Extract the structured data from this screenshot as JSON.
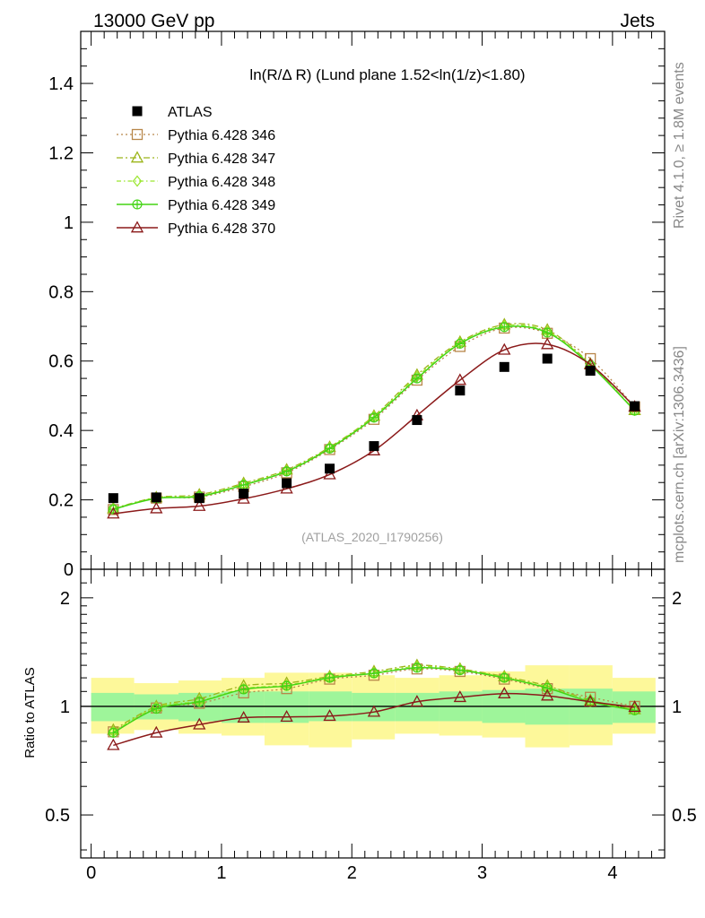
{
  "header": {
    "left": "13000 GeV pp",
    "right": "Jets",
    "title": "ln(R/Δ R) (Lund plane 1.52<ln(1/z)<1.80)",
    "watermark": "(ATLAS_2020_I1790256)",
    "side_top": "Rivet 4.1.0, ≥ 1.8M events",
    "side_bottom": "mcplots.cern.ch [arXiv:1306.3436]"
  },
  "chart_data": [
    {
      "type": "scatter",
      "panel": "main",
      "title": "ln(R/Δ R) (Lund plane 1.52<ln(1/z)<1.80)",
      "xlabel": "",
      "ylabel": "",
      "xlim": [
        -0.08,
        4.4
      ],
      "ylim": [
        0,
        1.55
      ],
      "xticks": [
        0,
        1,
        2,
        3,
        4
      ],
      "yticks": [
        0,
        0.2,
        0.4,
        0.6,
        0.8,
        1,
        1.2,
        1.4
      ],
      "ytick_labels": [
        "0",
        "0.2",
        "0.4",
        "0.6",
        "0.8",
        "1",
        "1.2",
        "1.4"
      ],
      "x": [
        0.17,
        0.5,
        0.83,
        1.17,
        1.5,
        1.83,
        2.17,
        2.5,
        2.83,
        3.17,
        3.5,
        3.83,
        4.17
      ],
      "series": [
        {
          "name": "ATLAS",
          "color": "#000000",
          "style": "points",
          "values": [
            0.205,
            0.207,
            0.205,
            0.218,
            0.248,
            0.29,
            0.355,
            0.43,
            0.515,
            0.583,
            0.607,
            0.572,
            0.47
          ]
        },
        {
          "name": "Pythia 6.428 346",
          "color": "#b8874a",
          "style": "dotted",
          "marker": "square",
          "values": [
            0.172,
            0.205,
            0.208,
            0.238,
            0.278,
            0.345,
            0.432,
            0.545,
            0.642,
            0.695,
            0.68,
            0.607,
            0.468
          ]
        },
        {
          "name": "Pythia 6.428 347",
          "color": "#9cb51a",
          "style": "dashdot",
          "marker": "triangle",
          "values": [
            0.175,
            0.207,
            0.215,
            0.248,
            0.287,
            0.352,
            0.442,
            0.56,
            0.655,
            0.705,
            0.69,
            0.592,
            0.458
          ]
        },
        {
          "name": "Pythia 6.428 348",
          "color": "#9ae62e",
          "style": "dashdot2",
          "marker": "diamond",
          "values": [
            0.174,
            0.206,
            0.212,
            0.245,
            0.284,
            0.35,
            0.44,
            0.555,
            0.652,
            0.702,
            0.685,
            0.59,
            0.458
          ]
        },
        {
          "name": "Pythia 6.428 349",
          "color": "#44d414",
          "style": "solid",
          "marker": "crosscircle",
          "values": [
            0.173,
            0.204,
            0.21,
            0.243,
            0.282,
            0.348,
            0.437,
            0.55,
            0.65,
            0.698,
            0.682,
            0.588,
            0.457
          ]
        },
        {
          "name": "Pythia 6.428 370",
          "color": "#8b1a1a",
          "style": "solid",
          "marker": "triangle",
          "values": [
            0.16,
            0.175,
            0.182,
            0.203,
            0.232,
            0.273,
            0.342,
            0.443,
            0.545,
            0.632,
            0.648,
            0.59,
            0.468
          ]
        }
      ]
    },
    {
      "type": "line",
      "panel": "ratio",
      "ylabel": "Ratio to ATLAS",
      "yscale": "log",
      "xlim": [
        -0.08,
        4.4
      ],
      "ylim": [
        0.38,
        2.4
      ],
      "yticks": [
        0.5,
        1,
        2
      ],
      "ytick_labels": [
        "0.5",
        "1",
        "2"
      ],
      "x": [
        0.17,
        0.5,
        0.83,
        1.17,
        1.5,
        1.83,
        2.17,
        2.5,
        2.83,
        3.17,
        3.5,
        3.83,
        4.17
      ],
      "bins": [
        [
          0,
          0.33
        ],
        [
          0.33,
          0.67
        ],
        [
          0.67,
          1.0
        ],
        [
          1.0,
          1.33
        ],
        [
          1.33,
          1.67
        ],
        [
          1.67,
          2.0
        ],
        [
          2.0,
          2.33
        ],
        [
          2.33,
          2.67
        ],
        [
          2.67,
          3.0
        ],
        [
          3.0,
          3.33
        ],
        [
          3.33,
          3.67
        ],
        [
          3.67,
          4.0
        ],
        [
          4.0,
          4.33
        ]
      ],
      "band_inner": [
        [
          0.91,
          1.09
        ],
        [
          0.92,
          1.08
        ],
        [
          0.91,
          1.09
        ],
        [
          0.9,
          1.1
        ],
        [
          0.9,
          1.1
        ],
        [
          0.91,
          1.1
        ],
        [
          0.91,
          1.09
        ],
        [
          0.91,
          1.09
        ],
        [
          0.91,
          1.1
        ],
        [
          0.9,
          1.11
        ],
        [
          0.89,
          1.12
        ],
        [
          0.89,
          1.12
        ],
        [
          0.9,
          1.1
        ]
      ],
      "band_outer": [
        [
          0.84,
          1.2
        ],
        [
          0.86,
          1.16
        ],
        [
          0.84,
          1.18
        ],
        [
          0.83,
          1.2
        ],
        [
          0.78,
          1.24
        ],
        [
          0.77,
          1.24
        ],
        [
          0.81,
          1.22
        ],
        [
          0.84,
          1.2
        ],
        [
          0.83,
          1.22
        ],
        [
          0.82,
          1.25
        ],
        [
          0.77,
          1.3
        ],
        [
          0.78,
          1.3
        ],
        [
          0.84,
          1.2
        ]
      ],
      "series": [
        {
          "name": "Pythia 6.428 346",
          "values": [
            0.85,
            0.99,
            1.02,
            1.09,
            1.12,
            1.19,
            1.22,
            1.27,
            1.25,
            1.19,
            1.12,
            1.06,
            1.0
          ]
        },
        {
          "name": "Pythia 6.428 347",
          "values": [
            0.86,
            1.0,
            1.05,
            1.14,
            1.16,
            1.21,
            1.25,
            1.3,
            1.27,
            1.21,
            1.14,
            1.04,
            0.98
          ]
        },
        {
          "name": "Pythia 6.428 348",
          "values": [
            0.85,
            0.995,
            1.035,
            1.12,
            1.145,
            1.205,
            1.24,
            1.29,
            1.265,
            1.205,
            1.13,
            1.03,
            0.98
          ]
        },
        {
          "name": "Pythia 6.428 349",
          "values": [
            0.845,
            0.985,
            1.03,
            1.115,
            1.14,
            1.2,
            1.235,
            1.28,
            1.26,
            1.2,
            1.125,
            1.03,
            0.975
          ]
        },
        {
          "name": "Pythia 6.428 370",
          "values": [
            0.78,
            0.845,
            0.89,
            0.93,
            0.935,
            0.94,
            0.965,
            1.03,
            1.06,
            1.085,
            1.07,
            1.03,
            0.995
          ]
        }
      ]
    }
  ]
}
